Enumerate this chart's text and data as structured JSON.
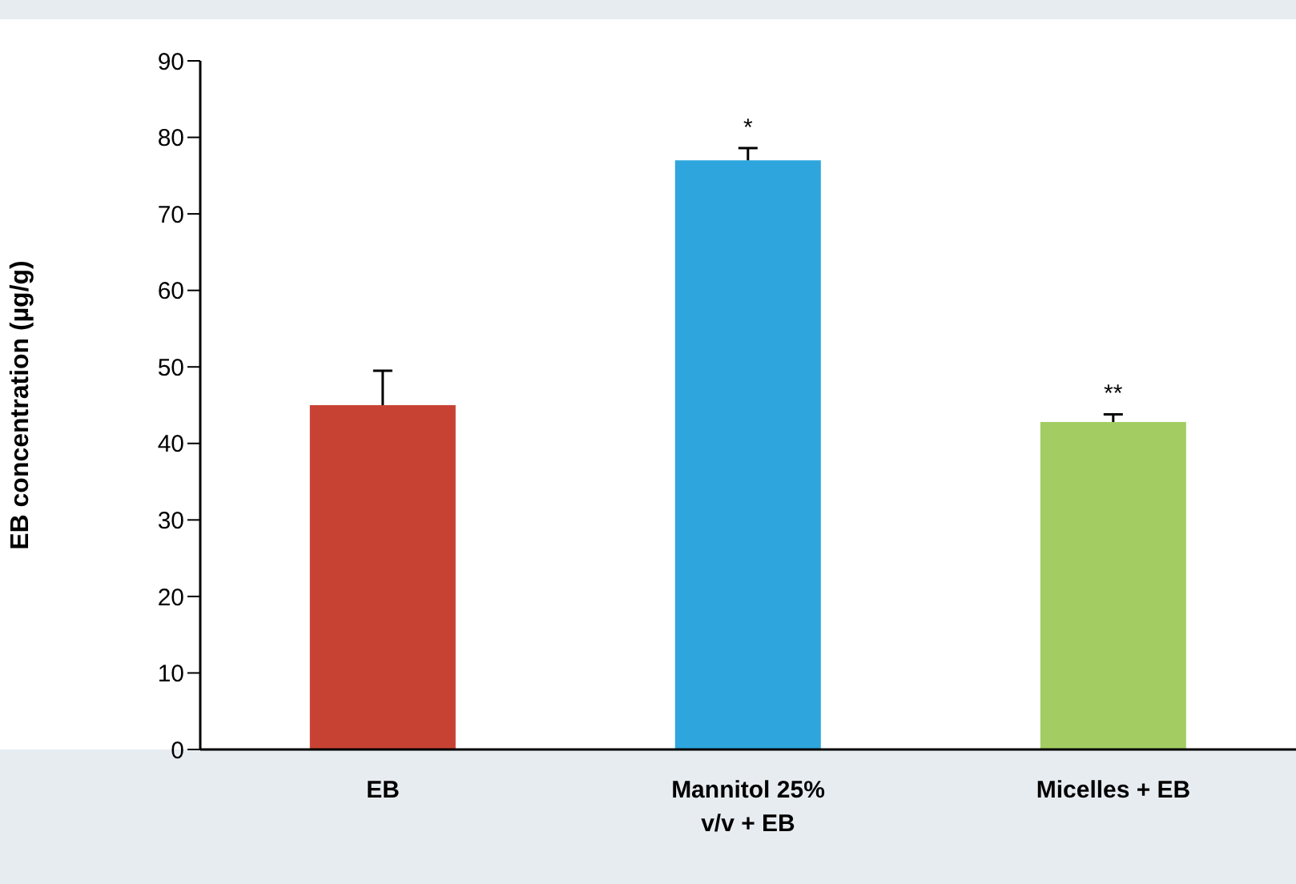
{
  "chart_data": {
    "type": "bar",
    "ylabel": "EB concentration (µg/g)",
    "categories": [
      "EB",
      "Mannitol 25% v/v + EB",
      "Micelles + EB"
    ],
    "values": [
      45,
      77,
      42.8
    ],
    "errors": [
      4.5,
      1.6,
      1
    ],
    "colors": [
      "#c84234",
      "#2ea6dd",
      "#a3cd62"
    ],
    "ylim": [
      0,
      90
    ],
    "yticks": [
      0,
      10,
      20,
      30,
      40,
      50,
      60,
      70,
      80,
      90
    ],
    "annotations": [
      {
        "text": "*",
        "x": "Mannitol 25% v/v + EB",
        "y": 77
      },
      {
        "text": "**",
        "x": "Micelles + EB",
        "y": 42.8
      }
    ],
    "grid": false,
    "legend": false
  }
}
